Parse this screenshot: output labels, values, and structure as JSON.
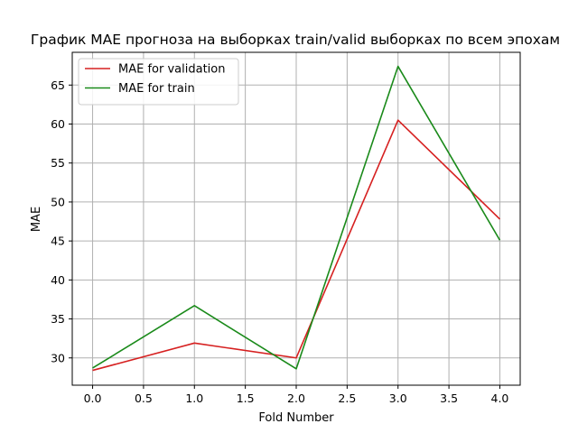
{
  "chart_data": {
    "type": "line",
    "title": "График MAE прогноза на выборках train/valid выборках по всем эпохам",
    "xlabel": "Fold Number",
    "ylabel": "MAE",
    "xlim": [
      -0.2,
      4.2
    ],
    "ylim": [
      26.5,
      69.2
    ],
    "x_ticks": [
      0.0,
      0.5,
      1.0,
      1.5,
      2.0,
      2.5,
      3.0,
      3.5,
      4.0
    ],
    "x_tick_labels": [
      "0.0",
      "0.5",
      "1.0",
      "1.5",
      "2.0",
      "2.5",
      "3.0",
      "3.5",
      "4.0"
    ],
    "y_ticks": [
      30,
      35,
      40,
      45,
      50,
      55,
      60,
      65
    ],
    "y_tick_labels": [
      "30",
      "35",
      "40",
      "45",
      "50",
      "55",
      "60",
      "65"
    ],
    "grid": true,
    "legend_position": "upper left",
    "x": [
      0,
      1,
      2,
      3,
      4
    ],
    "series": [
      {
        "name": "MAE for validation",
        "color": "#d62020",
        "values": [
          28.4,
          31.9,
          30.0,
          60.5,
          47.8
        ]
      },
      {
        "name": "MAE for train",
        "color": "#1a8a1a",
        "values": [
          28.7,
          36.7,
          28.6,
          67.4,
          45.1
        ]
      }
    ]
  }
}
